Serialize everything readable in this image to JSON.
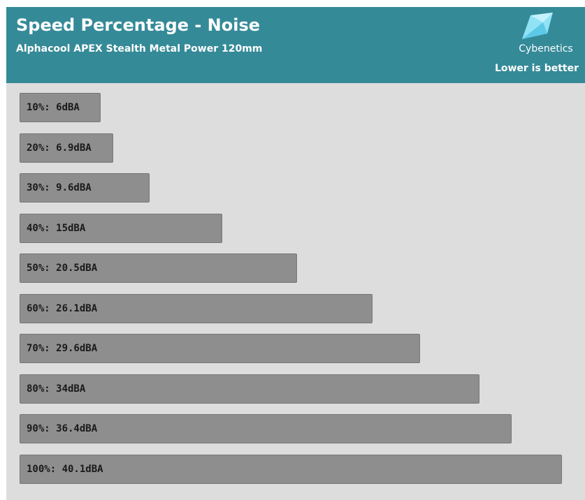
{
  "header": {
    "title": "Speed Percentage - Noise",
    "subtitle": "Alphacool APEX Stealth Metal Power 120mm",
    "logo_text": "Cybenetics",
    "note": "Lower is better",
    "background_color": "#358a98",
    "logo_icon": "cybenetics-logo-icon"
  },
  "chart_data": {
    "type": "bar",
    "orientation": "horizontal",
    "title": "Speed Percentage - Noise",
    "subtitle": "Alphacool APEX Stealth Metal Power 120mm",
    "categories": [
      "10%",
      "20%",
      "30%",
      "40%",
      "50%",
      "60%",
      "70%",
      "80%",
      "90%",
      "100%"
    ],
    "values": [
      6,
      6.9,
      9.6,
      15,
      20.5,
      26.1,
      29.6,
      34,
      36.4,
      40.1
    ],
    "labels": [
      "10%: 6dBA",
      "20%: 6.9dBA",
      "30%: 9.6dBA",
      "40%: 15dBA",
      "50%: 20.5dBA",
      "60%: 26.1dBA",
      "70%: 29.6dBA",
      "80%: 34dBA",
      "90%: 36.4dBA",
      "100%: 40.1dBA"
    ],
    "unit": "dBA",
    "bar_color": "#8e8e8e",
    "background_color": "#dddddd",
    "grid": false,
    "legend": "none"
  }
}
